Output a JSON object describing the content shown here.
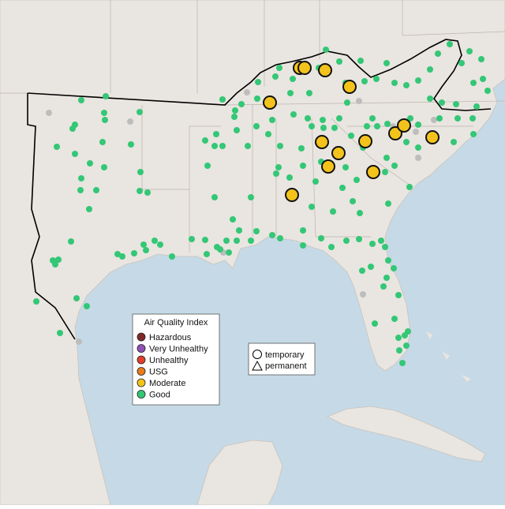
{
  "legend": {
    "title": "Air Quality Index",
    "items": [
      {
        "label": "Hazardous",
        "color": "#7e2a2a"
      },
      {
        "label": "Very Unhealthy",
        "color": "#9150b6"
      },
      {
        "label": "Unhealthy",
        "color": "#e2402c"
      },
      {
        "label": "USG",
        "color": "#e87b1a"
      },
      {
        "label": "Moderate",
        "color": "#f3c31c"
      },
      {
        "label": "Good",
        "color": "#33c776"
      }
    ]
  },
  "shape_legend": {
    "items": [
      "temporary",
      "permanent"
    ]
  }
}
